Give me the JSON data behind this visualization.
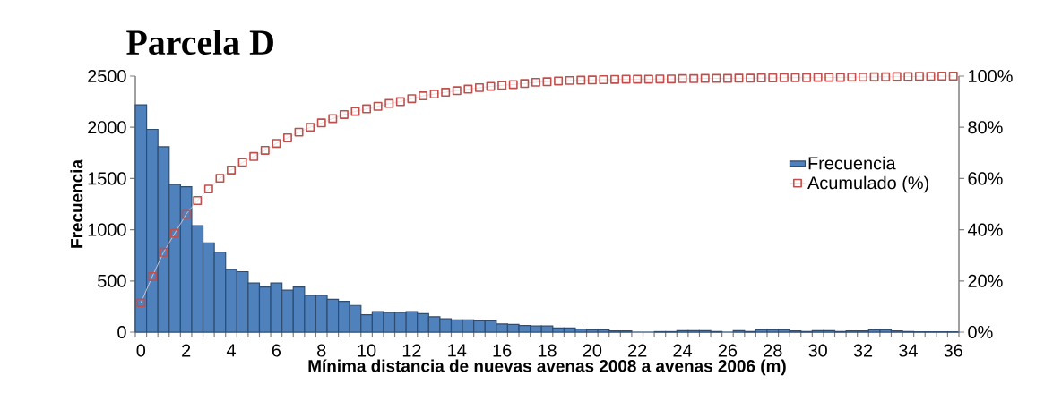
{
  "chart_data": {
    "type": "bar",
    "title": "Parcela D",
    "xlabel": "Mínima distancia de nuevas avenas 2008 a avenas 2006 (m)",
    "ylabel": "Frecuencia",
    "categories": [
      "0",
      null,
      null,
      null,
      "2",
      null,
      null,
      null,
      "4",
      null,
      null,
      null,
      "6",
      null,
      null,
      null,
      "8",
      null,
      null,
      null,
      "10",
      null,
      null,
      null,
      "12",
      null,
      null,
      null,
      "14",
      null,
      null,
      null,
      "16",
      null,
      null,
      null,
      "18",
      null,
      null,
      null,
      "20",
      null,
      null,
      null,
      "22",
      null,
      null,
      null,
      "24",
      null,
      null,
      null,
      "26",
      null,
      null,
      null,
      "28",
      null,
      null,
      null,
      "30",
      null,
      null,
      null,
      "32",
      null,
      null,
      null,
      "34",
      null,
      null,
      null,
      "36"
    ],
    "series": [
      {
        "name": "Frecuencia",
        "color": "#4f81bd",
        "values": [
          2220,
          1980,
          1810,
          1440,
          1420,
          1040,
          870,
          780,
          610,
          590,
          480,
          440,
          480,
          410,
          440,
          360,
          360,
          320,
          300,
          260,
          170,
          200,
          190,
          190,
          200,
          180,
          150,
          130,
          120,
          120,
          110,
          110,
          80,
          75,
          65,
          60,
          60,
          40,
          40,
          29,
          23,
          23,
          12,
          12,
          0,
          0,
          5,
          5,
          15,
          15,
          15,
          6,
          0,
          15,
          6,
          23,
          23,
          23,
          12,
          6,
          15,
          15,
          6,
          12,
          12,
          23,
          23,
          12,
          6,
          3,
          3,
          3,
          3
        ]
      },
      {
        "name": "Acumulado (%)",
        "type": "line",
        "axis": "y2",
        "marker": "square",
        "line_style": "solid",
        "color": "#c0504d",
        "values": [
          11.5,
          21.7,
          31.2,
          38.6,
          46.0,
          51.4,
          55.9,
          60.1,
          63.3,
          66.3,
          68.6,
          71.0,
          73.7,
          75.9,
          78.1,
          80.0,
          81.7,
          83.4,
          85.0,
          86.2,
          87.2,
          88.2,
          89.3,
          90.0,
          91.2,
          92.3,
          93.0,
          93.7,
          94.3,
          94.9,
          95.5,
          96.0,
          96.4,
          96.7,
          97.1,
          97.6,
          97.8,
          98.1,
          98.3,
          98.4,
          98.5,
          98.6,
          98.7,
          98.8,
          98.8,
          98.8,
          98.9,
          98.9,
          99.0,
          99.0,
          99.1,
          99.1,
          99.1,
          99.2,
          99.2,
          99.3,
          99.3,
          99.4,
          99.4,
          99.4,
          99.5,
          99.5,
          99.5,
          99.6,
          99.6,
          99.7,
          99.7,
          99.8,
          99.8,
          99.9,
          99.9,
          100.0,
          100.0
        ]
      }
    ],
    "ylim": [
      0,
      2500
    ],
    "yticks": [
      0,
      500,
      1000,
      1500,
      2000,
      2500
    ],
    "y2lim": [
      0,
      100
    ],
    "y2ticks": [
      {
        "value": 0,
        "label": "0%"
      },
      {
        "value": 20,
        "label": "20%"
      },
      {
        "value": 40,
        "label": "40%"
      },
      {
        "value": 60,
        "label": "60%"
      },
      {
        "value": 80,
        "label": "80%"
      },
      {
        "value": 100,
        "label": "100%"
      }
    ],
    "legend": "right"
  }
}
